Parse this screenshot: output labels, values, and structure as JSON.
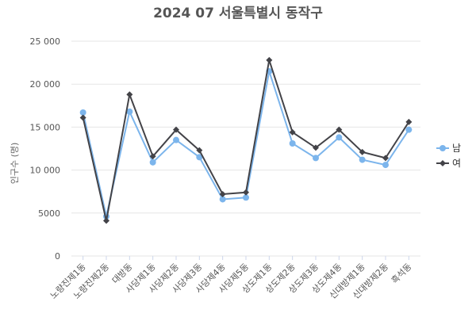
{
  "chart_data": {
    "type": "line",
    "title": "2024 07 서울특별시 동작구",
    "ylabel": "인구수 (명)",
    "xlabel": "",
    "ylim": [
      0,
      25000
    ],
    "yticks": [
      0,
      5000,
      10000,
      15000,
      20000,
      25000
    ],
    "ytick_labels": [
      "0",
      "5000",
      "10 000",
      "15 000",
      "20 000",
      "25 000"
    ],
    "grid": true,
    "legend_position": "right",
    "categories": [
      "노량진제1동",
      "노량진제2동",
      "대방동",
      "사당제1동",
      "사당제2동",
      "사당제3동",
      "사당제4동",
      "사당제5동",
      "상도제1동",
      "상도제2동",
      "상도제3동",
      "상도제4동",
      "신대방제1동",
      "신대방제2동",
      "흑석동"
    ],
    "series": [
      {
        "name": "남",
        "color": "#7cb5ec",
        "marker": "circle",
        "values": [
          16700,
          4600,
          16800,
          10900,
          13500,
          11500,
          6600,
          6800,
          21500,
          13100,
          11400,
          13800,
          11200,
          10600,
          14700
        ]
      },
      {
        "name": "여",
        "color": "#434348",
        "marker": "diamond",
        "values": [
          16100,
          4100,
          18800,
          11600,
          14700,
          12300,
          7200,
          7400,
          22800,
          14400,
          12600,
          14700,
          12100,
          11400,
          15600
        ]
      }
    ]
  }
}
